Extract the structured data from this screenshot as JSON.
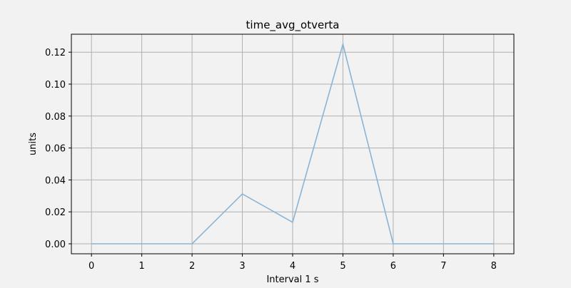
{
  "chart_data": {
    "type": "line",
    "title": "time_avg_otverta",
    "xlabel": "Interval 1 s",
    "ylabel": "units",
    "x": [
      0,
      1,
      2,
      3,
      4,
      5,
      6,
      7,
      8
    ],
    "series": [
      {
        "values": [
          0.0,
          0.0,
          0.0,
          0.0312,
          0.0135,
          0.125,
          0.0,
          0.0,
          0.0
        ]
      }
    ],
    "x_ticks": [
      "0",
      "1",
      "2",
      "3",
      "4",
      "5",
      "6",
      "7",
      "8"
    ],
    "y_ticks": [
      "0.00",
      "0.02",
      "0.04",
      "0.06",
      "0.08",
      "0.10",
      "0.12"
    ],
    "xlim": [
      -0.4,
      8.4
    ],
    "ylim": [
      -0.00625,
      0.13125
    ],
    "grid": true,
    "legend": "none",
    "colors": {
      "line": "#8ab4d6",
      "grid": "#b0b0b0",
      "background": "#f2f2f2",
      "axes": "#000000"
    }
  }
}
